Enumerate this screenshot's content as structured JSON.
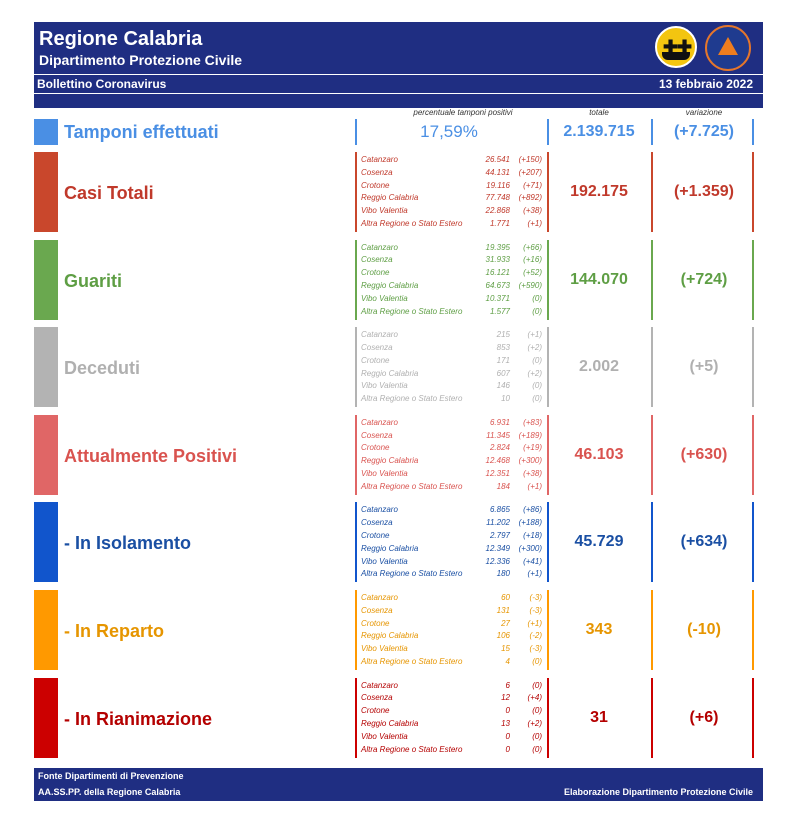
{
  "header": {
    "title": "Regione Calabria",
    "subtitle": "Dipartimento Protezione Civile",
    "bulletin": "Bollettino Coronavirus",
    "date": "13 febbraio 2022"
  },
  "columns": {
    "pct": "percentuale tamponi positivi",
    "total": "totale",
    "variation": "variazione"
  },
  "tamponi": {
    "label": "Tamponi effettuati",
    "pct": "17,59%",
    "total": "2.139.715",
    "variation": "(+7.725)",
    "color": "#4a8fe4"
  },
  "sections": [
    {
      "key": "casi",
      "label": "Casi Totali",
      "color": "#c9472c",
      "text_color": "#c0392b",
      "total": "192.175",
      "variation": "(+1.359)",
      "provinces": [
        {
          "name": "Catanzaro",
          "value": "26.541",
          "delta": "(+150)"
        },
        {
          "name": "Cosenza",
          "value": "44.131",
          "delta": "(+207)"
        },
        {
          "name": "Crotone",
          "value": "19.116",
          "delta": "(+71)"
        },
        {
          "name": "Reggio Calabria",
          "value": "77.748",
          "delta": "(+892)"
        },
        {
          "name": "Vibo Valentia",
          "value": "22.868",
          "delta": "(+38)"
        },
        {
          "name": "Altra Regione o Stato Estero",
          "value": "1.771",
          "delta": "(+1)"
        }
      ]
    },
    {
      "key": "guariti",
      "label": "Guariti",
      "color": "#6aa84f",
      "text_color": "#5e9e44",
      "total": "144.070",
      "variation": "(+724)",
      "provinces": [
        {
          "name": "Catanzaro",
          "value": "19.395",
          "delta": "(+66)"
        },
        {
          "name": "Cosenza",
          "value": "31.933",
          "delta": "(+16)"
        },
        {
          "name": "Crotone",
          "value": "16.121",
          "delta": "(+52)"
        },
        {
          "name": "Reggio Calabria",
          "value": "64.673",
          "delta": "(+590)"
        },
        {
          "name": "Vibo Valentia",
          "value": "10.371",
          "delta": "(0)"
        },
        {
          "name": "Altra Regione o Stato Estero",
          "value": "1.577",
          "delta": "(0)"
        }
      ]
    },
    {
      "key": "deceduti",
      "label": "Deceduti",
      "color": "#b3b3b3",
      "text_color": "#b0b0b0",
      "total": "2.002",
      "variation": "(+5)",
      "provinces": [
        {
          "name": "Catanzaro",
          "value": "215",
          "delta": "(+1)"
        },
        {
          "name": "Cosenza",
          "value": "853",
          "delta": "(+2)"
        },
        {
          "name": "Crotone",
          "value": "171",
          "delta": "(0)"
        },
        {
          "name": "Reggio Calabria",
          "value": "607",
          "delta": "(+2)"
        },
        {
          "name": "Vibo Valentia",
          "value": "146",
          "delta": "(0)"
        },
        {
          "name": "Altra Regione o Stato Estero",
          "value": "10",
          "delta": "(0)"
        }
      ]
    },
    {
      "key": "positivi",
      "label": "Attualmente Positivi",
      "color": "#e06666",
      "text_color": "#d9534f",
      "total": "46.103",
      "variation": "(+630)",
      "provinces": [
        {
          "name": "Catanzaro",
          "value": "6.931",
          "delta": "(+83)"
        },
        {
          "name": "Cosenza",
          "value": "11.345",
          "delta": "(+189)"
        },
        {
          "name": "Crotone",
          "value": "2.824",
          "delta": "(+19)"
        },
        {
          "name": "Reggio Calabria",
          "value": "12.468",
          "delta": "(+300)"
        },
        {
          "name": "Vibo Valentia",
          "value": "12.351",
          "delta": "(+38)"
        },
        {
          "name": "Altra Regione o Stato Estero",
          "value": "184",
          "delta": "(+1)"
        }
      ]
    },
    {
      "key": "isolamento",
      "label": " - In Isolamento",
      "color": "#1155cc",
      "text_color": "#1a4fa3",
      "total": "45.729",
      "variation": "(+634)",
      "provinces": [
        {
          "name": "Catanzaro",
          "value": "6.865",
          "delta": "(+86)"
        },
        {
          "name": "Cosenza",
          "value": "11.202",
          "delta": "(+188)"
        },
        {
          "name": "Crotone",
          "value": "2.797",
          "delta": "(+18)"
        },
        {
          "name": "Reggio Calabria",
          "value": "12.349",
          "delta": "(+300)"
        },
        {
          "name": "Vibo Valentia",
          "value": "12.336",
          "delta": "(+41)"
        },
        {
          "name": "Altra Regione o Stato Estero",
          "value": "180",
          "delta": "(+1)"
        }
      ]
    },
    {
      "key": "reparto",
      "label": " - In Reparto",
      "color": "#ff9900",
      "text_color": "#e69500",
      "total": "343",
      "variation": "(-10)",
      "provinces": [
        {
          "name": "Catanzaro",
          "value": "60",
          "delta": "(-3)"
        },
        {
          "name": "Cosenza",
          "value": "131",
          "delta": "(-3)"
        },
        {
          "name": "Crotone",
          "value": "27",
          "delta": "(+1)"
        },
        {
          "name": "Reggio Calabria",
          "value": "106",
          "delta": "(-2)"
        },
        {
          "name": "Vibo Valentia",
          "value": "15",
          "delta": "(-3)"
        },
        {
          "name": "Altra Regione o Stato Estero",
          "value": "4",
          "delta": "(0)"
        }
      ]
    },
    {
      "key": "rianimazione",
      "label": " - In Rianimazione",
      "color": "#cc0000",
      "text_color": "#b40000",
      "total": "31",
      "variation": "(+6)",
      "provinces": [
        {
          "name": "Catanzaro",
          "value": "6",
          "delta": "(0)"
        },
        {
          "name": "Cosenza",
          "value": "12",
          "delta": "(+4)"
        },
        {
          "name": "Crotone",
          "value": "0",
          "delta": "(0)"
        },
        {
          "name": "Reggio Calabria",
          "value": "13",
          "delta": "(+2)"
        },
        {
          "name": "Vibo Valentia",
          "value": "0",
          "delta": "(0)"
        },
        {
          "name": "Altra Regione o Stato Estero",
          "value": "0",
          "delta": "(0)"
        }
      ]
    }
  ],
  "footer": {
    "source_line1": "Fonte Dipartimenti di Prevenzione",
    "source_line2": "AA.SS.PP.  della Regione Calabria",
    "credit": "Elaborazione Dipartimento Protezione Civile"
  }
}
